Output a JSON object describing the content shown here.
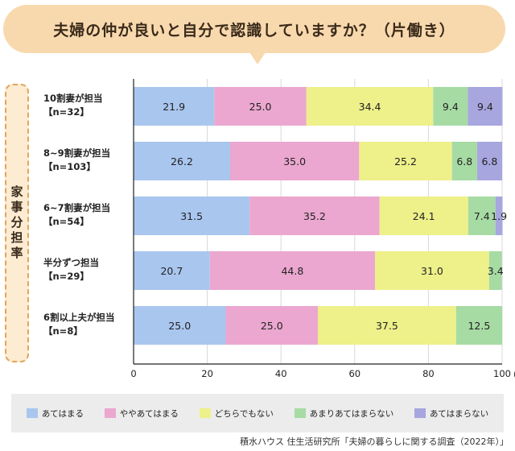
{
  "title": "夫婦の仲が良いと自分で認識していますか？（片働き）",
  "axis_group_label": "家事分担率",
  "source": "積水ハウス 住生活研究所「夫婦の暮らしに関する調査（2022年）」",
  "colors": {
    "series": [
      "#a9c6ee",
      "#eba7cf",
      "#eef08a",
      "#a6dba4",
      "#a8a6df"
    ],
    "title_bg": "#f8d9ae",
    "group_box_bg": "#fdebd2",
    "group_box_border": "#e0a55a",
    "legend_bg": "#ececec"
  },
  "chart_data": {
    "type": "bar",
    "orientation": "horizontal",
    "stacked": true,
    "categories": [
      {
        "label": "10割妻が担当",
        "n": "【n=32】"
      },
      {
        "label": "8~9割妻が担当",
        "n": "【n=103】"
      },
      {
        "label": "6~7割妻が担当",
        "n": "【n=54】"
      },
      {
        "label": "半分ずつ担当",
        "n": "【n=29】"
      },
      {
        "label": "6割以上夫が担当",
        "n": "【n=8】"
      }
    ],
    "series": [
      {
        "name": "あてはまる",
        "values": [
          21.9,
          26.2,
          31.5,
          20.7,
          25.0
        ]
      },
      {
        "name": "ややあてはまる",
        "values": [
          25.0,
          35.0,
          35.2,
          44.8,
          25.0
        ]
      },
      {
        "name": "どちらでもない",
        "values": [
          34.4,
          25.2,
          24.1,
          31.0,
          37.5
        ]
      },
      {
        "name": "あまりあてはまらない",
        "values": [
          9.4,
          6.8,
          7.4,
          3.4,
          12.5
        ]
      },
      {
        "name": "あてはまらない",
        "values": [
          9.4,
          6.8,
          1.9,
          0,
          0
        ]
      }
    ],
    "labels": [
      [
        "21.9",
        "25.0",
        "34.4",
        "9.4",
        "9.4"
      ],
      [
        "26.2",
        "35.0",
        "25.2",
        "6.8",
        "6.8"
      ],
      [
        "31.5",
        "35.2",
        "24.1",
        "7.4",
        "1.9"
      ],
      [
        "20.7",
        "44.8",
        "31.0",
        "3.4",
        ""
      ],
      [
        "25.0",
        "25.0",
        "37.5",
        "12.5",
        ""
      ]
    ],
    "xlim": [
      0,
      100
    ],
    "xticks": [
      {
        "value": 0,
        "label": "0"
      },
      {
        "value": 20,
        "label": "20"
      },
      {
        "value": 40,
        "label": "40"
      },
      {
        "value": 60,
        "label": "60"
      },
      {
        "value": 80,
        "label": "80"
      },
      {
        "value": 100,
        "label": "100"
      }
    ],
    "xunit": "(%)",
    "legend_position": "bottom"
  }
}
